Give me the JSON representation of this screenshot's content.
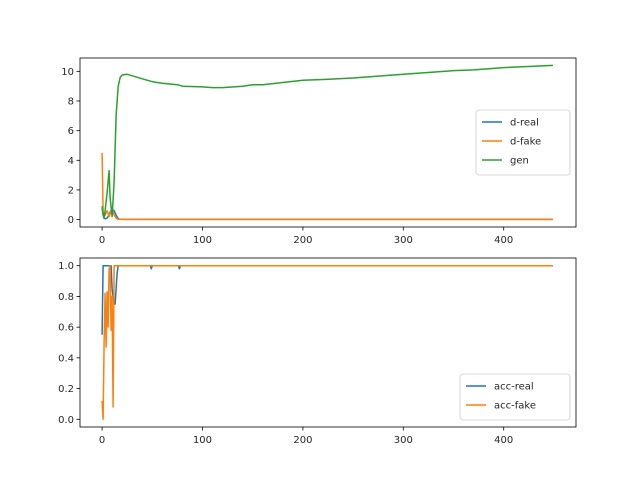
{
  "chart_data": [
    {
      "type": "line",
      "title": "",
      "xlabel": "",
      "ylabel": "",
      "xlim": [
        -22,
        472
      ],
      "ylim": [
        -0.5,
        10.9
      ],
      "xticks": [
        0,
        100,
        200,
        300,
        400
      ],
      "yticks": [
        0,
        2,
        4,
        6,
        8,
        10
      ],
      "grid": false,
      "legend_position": "center right",
      "x": [
        0,
        1,
        2,
        3,
        5,
        7,
        8,
        10,
        12,
        14,
        16,
        18,
        20,
        25,
        30,
        40,
        50,
        60,
        75,
        80,
        100,
        110,
        120,
        140,
        150,
        160,
        180,
        200,
        220,
        250,
        280,
        300,
        330,
        350,
        370,
        400,
        430,
        449
      ],
      "series": [
        {
          "name": "d-real",
          "color": "#1f77b4",
          "values": [
            0.8,
            0.3,
            0.1,
            0.05,
            0.1,
            0.3,
            0.5,
            0.7,
            0.6,
            0.3,
            0.05,
            0.02,
            0.02,
            0.01,
            0.01,
            0.01,
            0.01,
            0.01,
            0.01,
            0.01,
            0.01,
            0.01,
            0.01,
            0.01,
            0.01,
            0.01,
            0.01,
            0.01,
            0.01,
            0.01,
            0.01,
            0.01,
            0.01,
            0.01,
            0.01,
            0.01,
            0.01,
            0.01
          ]
        },
        {
          "name": "d-fake",
          "color": "#ff7f0e",
          "values": [
            4.5,
            0.5,
            0.2,
            0.3,
            0.6,
            0.2,
            0.4,
            0.7,
            0.3,
            0.1,
            0.02,
            0.01,
            0.01,
            0.01,
            0.01,
            0.01,
            0.01,
            0.01,
            0.01,
            0.01,
            0.01,
            0.01,
            0.01,
            0.01,
            0.01,
            0.01,
            0.01,
            0.01,
            0.01,
            0.01,
            0.01,
            0.01,
            0.01,
            0.01,
            0.01,
            0.01,
            0.01,
            0.01
          ]
        },
        {
          "name": "gen",
          "color": "#2ca02c",
          "values": [
            0.9,
            0.4,
            0.1,
            0.6,
            1.8,
            3.3,
            1.5,
            0.2,
            2.5,
            7.0,
            9.0,
            9.6,
            9.75,
            9.8,
            9.7,
            9.5,
            9.3,
            9.2,
            9.1,
            9.0,
            8.95,
            8.9,
            8.9,
            9.0,
            9.1,
            9.1,
            9.25,
            9.4,
            9.45,
            9.55,
            9.7,
            9.8,
            9.95,
            10.05,
            10.1,
            10.25,
            10.35,
            10.4
          ]
        }
      ]
    },
    {
      "type": "line",
      "title": "",
      "xlabel": "",
      "ylabel": "",
      "xlim": [
        -22,
        472
      ],
      "ylim": [
        -0.05,
        1.05
      ],
      "xticks": [
        0,
        100,
        200,
        300,
        400
      ],
      "yticks": [
        0.0,
        0.2,
        0.4,
        0.6,
        0.8,
        1.0
      ],
      "grid": false,
      "legend_position": "lower right",
      "x": [
        0,
        1,
        2,
        3,
        4,
        5,
        6,
        7,
        8,
        9,
        10,
        11,
        12,
        13,
        14,
        15,
        16,
        18,
        20,
        48,
        49,
        50,
        76,
        77,
        78,
        100,
        200,
        300,
        400,
        449
      ],
      "series": [
        {
          "name": "acc-real",
          "color": "#1f77b4",
          "values": [
            0.55,
            1.0,
            1.0,
            1.0,
            1.0,
            1.0,
            1.0,
            1.0,
            1.0,
            1.0,
            0.85,
            0.8,
            0.75,
            0.75,
            0.85,
            0.95,
            1.0,
            1.0,
            1.0,
            1.0,
            0.98,
            1.0,
            1.0,
            0.98,
            1.0,
            1.0,
            1.0,
            1.0,
            1.0,
            1.0
          ]
        },
        {
          "name": "acc-fake",
          "color": "#ff7f0e",
          "values": [
            0.12,
            0.0,
            0.5,
            0.82,
            0.47,
            0.83,
            0.6,
            0.98,
            1.0,
            0.58,
            0.8,
            0.08,
            1.0,
            1.0,
            1.0,
            1.0,
            1.0,
            1.0,
            1.0,
            1.0,
            1.0,
            1.0,
            1.0,
            1.0,
            1.0,
            1.0,
            1.0,
            1.0,
            1.0,
            1.0
          ]
        }
      ]
    }
  ]
}
